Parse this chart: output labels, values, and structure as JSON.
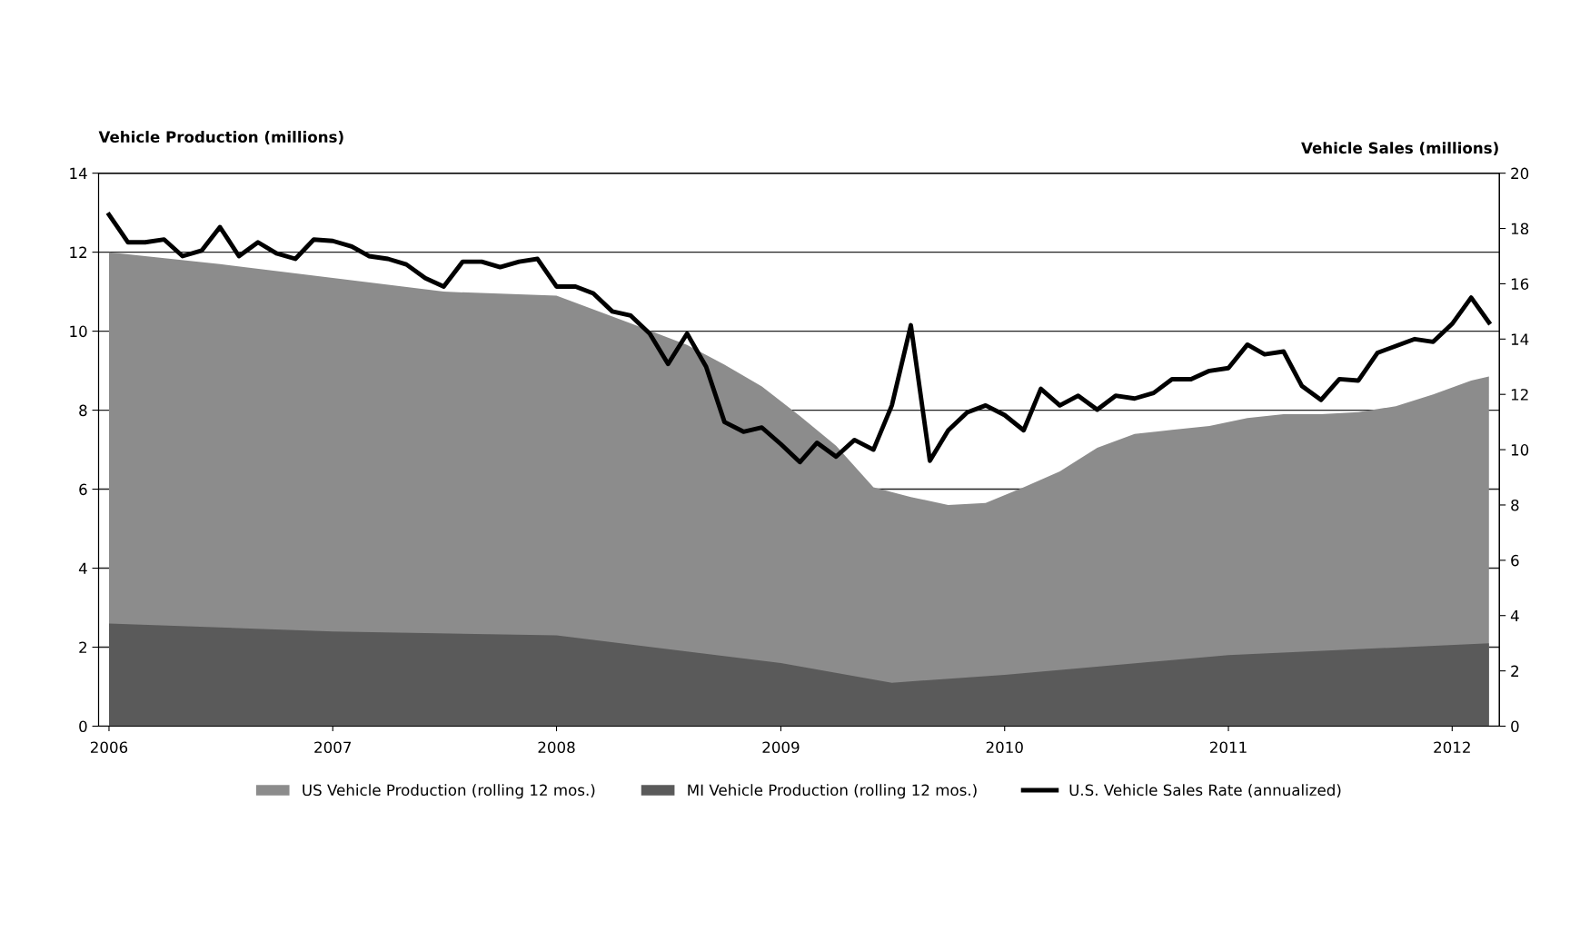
{
  "chart_data": {
    "type": "area",
    "ylabel": "Vehicle Production (millions)",
    "y2label": "Vehicle Sales (millions)",
    "xlim": [
      "2005-12-15",
      "2012-03-18"
    ],
    "xticks": [
      "2006",
      "2007",
      "2008",
      "2009",
      "2010",
      "2011",
      "2012"
    ],
    "ylim": [
      0,
      14
    ],
    "yticks": [
      0,
      2,
      4,
      6,
      8,
      10,
      12,
      14
    ],
    "y2lim": [
      0,
      20
    ],
    "y2ticks": [
      0,
      2,
      4,
      6,
      8,
      10,
      12,
      14,
      16,
      18,
      20
    ],
    "grid": "y",
    "legend": "bottom",
    "series": [
      {
        "name": "US Vehicle Production (rolling 12 mos.)",
        "color": "#8c8c8c",
        "x": [
          "2006-01",
          "2006-07",
          "2007-01",
          "2007-07",
          "2008-01",
          "2008-05",
          "2008-08",
          "2008-10",
          "2008-12",
          "2009-02",
          "2009-04",
          "2009-06",
          "2009-08",
          "2009-10",
          "2009-12",
          "2010-02",
          "2010-04",
          "2010-06",
          "2010-08",
          "2010-10",
          "2010-12",
          "2011-02",
          "2011-04",
          "2011-06",
          "2011-08",
          "2011-10",
          "2011-12",
          "2012-02",
          "2012-03"
        ],
        "values": [
          12.0,
          11.7,
          11.35,
          11.0,
          10.9,
          10.2,
          9.65,
          9.15,
          8.6,
          7.85,
          7.1,
          6.05,
          5.8,
          5.6,
          5.65,
          6.05,
          6.45,
          7.05,
          7.4,
          7.5,
          7.6,
          7.8,
          7.9,
          7.9,
          7.95,
          8.1,
          8.4,
          8.75,
          8.85
        ]
      },
      {
        "name": "MI Vehicle Production (rolling 12 mos.)",
        "color": "#5a5a5a",
        "x": [
          "2006-01",
          "2007-01",
          "2008-01",
          "2009-01",
          "2009-07",
          "2010-01",
          "2011-01",
          "2012-03"
        ],
        "values": [
          2.6,
          2.4,
          2.3,
          1.6,
          1.1,
          1.3,
          1.8,
          2.1
        ]
      },
      {
        "name": "U.S. Vehicle Sales Rate (annualized)",
        "type": "line",
        "axis": "y2",
        "color": "#000000",
        "x": [
          "2006-01",
          "2006-02",
          "2006-03",
          "2006-04",
          "2006-05",
          "2006-06",
          "2006-07",
          "2006-08",
          "2006-09",
          "2006-10",
          "2006-11",
          "2006-12",
          "2007-01",
          "2007-02",
          "2007-03",
          "2007-04",
          "2007-05",
          "2007-06",
          "2007-07",
          "2007-08",
          "2007-09",
          "2007-10",
          "2007-11",
          "2007-12",
          "2008-01",
          "2008-02",
          "2008-03",
          "2008-04",
          "2008-05",
          "2008-06",
          "2008-07",
          "2008-08",
          "2008-09",
          "2008-10",
          "2008-11",
          "2008-12",
          "2009-01",
          "2009-02",
          "2009-03",
          "2009-04",
          "2009-05",
          "2009-06",
          "2009-07",
          "2009-08",
          "2009-09",
          "2009-10",
          "2009-11",
          "2009-12",
          "2010-01",
          "2010-02",
          "2010-03",
          "2010-04",
          "2010-05",
          "2010-06",
          "2010-07",
          "2010-08",
          "2010-09",
          "2010-10",
          "2010-11",
          "2010-12",
          "2011-01",
          "2011-02",
          "2011-03",
          "2011-04",
          "2011-05",
          "2011-06",
          "2011-07",
          "2011-08",
          "2011-09",
          "2011-10",
          "2011-11",
          "2011-12",
          "2012-01",
          "2012-02",
          "2012-03"
        ],
        "values": [
          18.5,
          17.5,
          17.5,
          17.6,
          17.0,
          17.2,
          18.05,
          17.0,
          17.5,
          17.1,
          16.9,
          17.6,
          17.55,
          17.35,
          17.0,
          16.9,
          16.7,
          16.2,
          15.9,
          16.8,
          16.8,
          16.6,
          16.8,
          16.9,
          15.9,
          15.9,
          15.65,
          15.0,
          14.85,
          14.2,
          13.1,
          14.2,
          13.0,
          11.0,
          10.65,
          10.8,
          10.2,
          9.55,
          10.25,
          9.75,
          10.35,
          10.0,
          11.6,
          14.5,
          9.6,
          10.7,
          11.35,
          11.6,
          11.25,
          10.7,
          12.2,
          11.6,
          11.95,
          11.45,
          11.95,
          11.85,
          12.05,
          12.55,
          12.55,
          12.85,
          12.95,
          13.8,
          13.45,
          13.55,
          12.3,
          11.8,
          12.55,
          12.5,
          13.5,
          13.75,
          14.0,
          13.9,
          14.55,
          15.5,
          14.6
        ]
      }
    ]
  }
}
